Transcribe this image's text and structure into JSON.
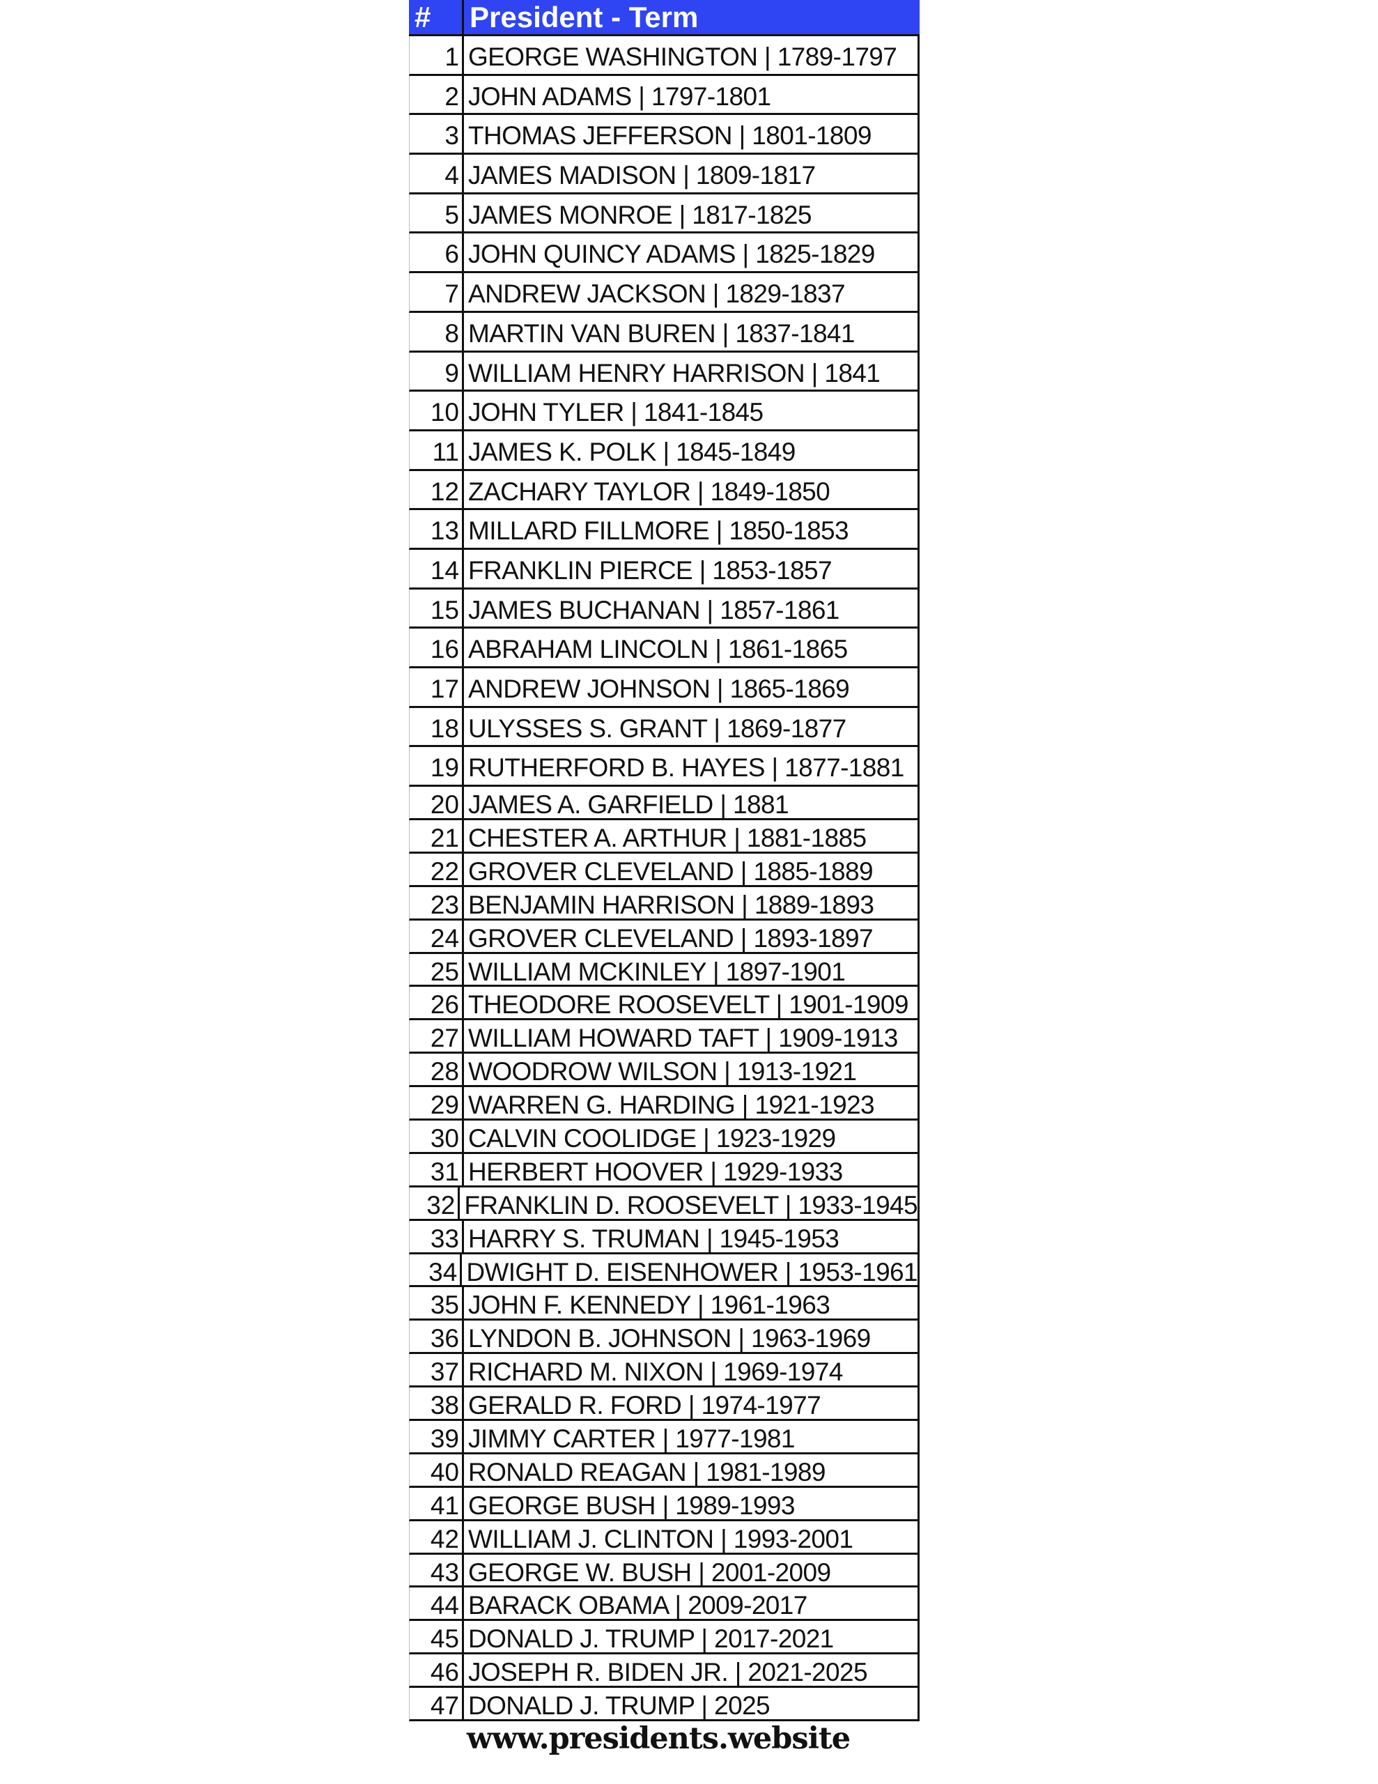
{
  "header": {
    "num_label": "#",
    "title": "President - Term",
    "color": "#2f45f3"
  },
  "rows": [
    {
      "num": "1",
      "text": "GEORGE WASHINGTON | 1789-1797"
    },
    {
      "num": "2",
      "text": "JOHN ADAMS | 1797-1801"
    },
    {
      "num": "3",
      "text": "THOMAS JEFFERSON | 1801-1809"
    },
    {
      "num": "4",
      "text": "JAMES MADISON | 1809-1817"
    },
    {
      "num": "5",
      "text": "JAMES MONROE | 1817-1825"
    },
    {
      "num": "6",
      "text": "JOHN QUINCY ADAMS | 1825-1829"
    },
    {
      "num": "7",
      "text": "ANDREW JACKSON | 1829-1837"
    },
    {
      "num": "8",
      "text": "MARTIN VAN BUREN | 1837-1841"
    },
    {
      "num": "9",
      "text": "WILLIAM HENRY HARRISON | 1841"
    },
    {
      "num": "10",
      "text": "JOHN TYLER | 1841-1845"
    },
    {
      "num": "11",
      "text": "JAMES K. POLK | 1845-1849"
    },
    {
      "num": "12",
      "text": "ZACHARY TAYLOR | 1849-1850"
    },
    {
      "num": "13",
      "text": "MILLARD FILLMORE | 1850-1853"
    },
    {
      "num": "14",
      "text": "FRANKLIN PIERCE | 1853-1857"
    },
    {
      "num": "15",
      "text": "JAMES BUCHANAN | 1857-1861"
    },
    {
      "num": "16",
      "text": "ABRAHAM LINCOLN | 1861-1865"
    },
    {
      "num": "17",
      "text": "ANDREW JOHNSON | 1865-1869"
    },
    {
      "num": "18",
      "text": "ULYSSES S. GRANT | 1869-1877"
    },
    {
      "num": "19",
      "text": "RUTHERFORD B. HAYES | 1877-1881"
    },
    {
      "num": "20",
      "text": "JAMES A. GARFIELD | 1881"
    },
    {
      "num": "21",
      "text": "CHESTER A. ARTHUR | 1881-1885"
    },
    {
      "num": "22",
      "text": "GROVER CLEVELAND | 1885-1889"
    },
    {
      "num": "23",
      "text": "BENJAMIN HARRISON | 1889-1893"
    },
    {
      "num": "24",
      "text": "GROVER CLEVELAND | 1893-1897"
    },
    {
      "num": "25",
      "text": "WILLIAM MCKINLEY | 1897-1901"
    },
    {
      "num": "26",
      "text": "THEODORE ROOSEVELT | 1901-1909"
    },
    {
      "num": "27",
      "text": "WILLIAM HOWARD TAFT | 1909-1913"
    },
    {
      "num": "28",
      "text": "WOODROW WILSON | 1913-1921"
    },
    {
      "num": "29",
      "text": "WARREN G. HARDING | 1921-1923"
    },
    {
      "num": "30",
      "text": "CALVIN COOLIDGE | 1923-1929"
    },
    {
      "num": "31",
      "text": "HERBERT HOOVER | 1929-1933"
    },
    {
      "num": "32",
      "text": "FRANKLIN D. ROOSEVELT | 1933-1945"
    },
    {
      "num": "33",
      "text": "HARRY S. TRUMAN | 1945-1953"
    },
    {
      "num": "34",
      "text": "DWIGHT D. EISENHOWER | 1953-1961"
    },
    {
      "num": "35",
      "text": "JOHN F. KENNEDY | 1961-1963"
    },
    {
      "num": "36",
      "text": "LYNDON B. JOHNSON | 1963-1969"
    },
    {
      "num": "37",
      "text": "RICHARD M. NIXON | 1969-1974"
    },
    {
      "num": "38",
      "text": "GERALD R. FORD | 1974-1977"
    },
    {
      "num": "39",
      "text": "JIMMY CARTER | 1977-1981"
    },
    {
      "num": "40",
      "text": "RONALD REAGAN | 1981-1989"
    },
    {
      "num": "41",
      "text": "GEORGE BUSH | 1989-1993"
    },
    {
      "num": "42",
      "text": "WILLIAM J. CLINTON | 1993-2001"
    },
    {
      "num": "43",
      "text": "GEORGE W. BUSH | 2001-2009"
    },
    {
      "num": "44",
      "text": "BARACK OBAMA | 2009-2017"
    },
    {
      "num": "45",
      "text": "DONALD J. TRUMP | 2017-2021"
    },
    {
      "num": "46",
      "text": "JOSEPH R. BIDEN JR. | 2021-2025"
    },
    {
      "num": "47",
      "text": "DONALD J. TRUMP | 2025"
    }
  ],
  "footer": {
    "website": "www.presidents.website"
  }
}
